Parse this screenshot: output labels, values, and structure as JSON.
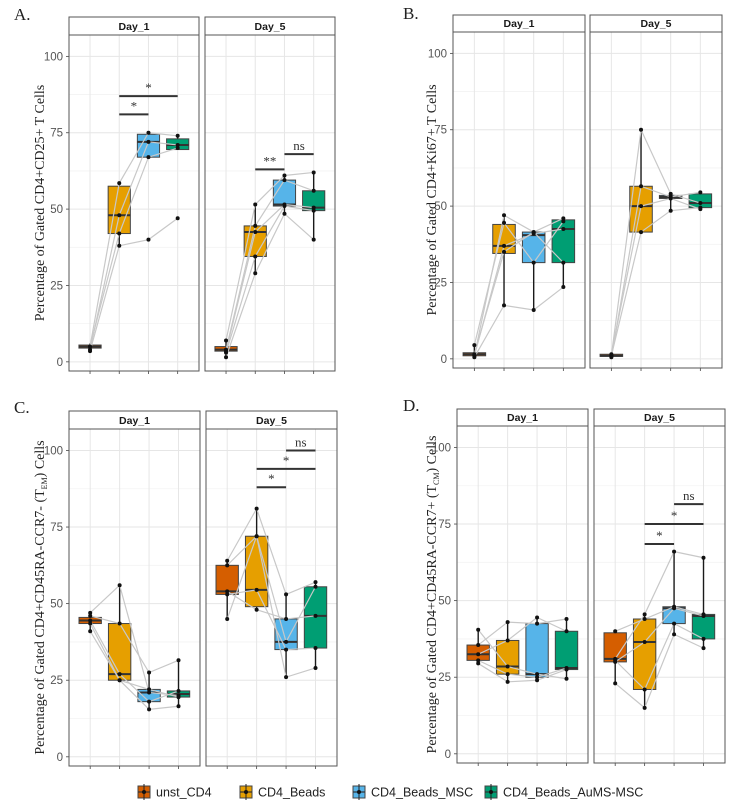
{
  "colors": {
    "unst_CD4": "#D55E00",
    "CD4_Beads": "#E69F00",
    "CD4_Beads_MSC": "#56B4E9",
    "CD4_Beads_AuMS-MSC": "#009E73"
  },
  "legend": {
    "items": [
      {
        "label": "unst_CD4",
        "key": "unst_CD4"
      },
      {
        "label": "CD4_Beads",
        "key": "CD4_Beads"
      },
      {
        "label": "CD4_Beads_MSC",
        "key": "CD4_Beads_MSC"
      },
      {
        "label": "CD4_Beads_AuMS-MSC",
        "key": "CD4_Beads_AuMS-MSC"
      }
    ]
  },
  "chart_data": [
    {
      "type": "box",
      "panel_label": "A.",
      "ylabel": "Percentage of Gated CD4+CD25+ T Cells",
      "ylabel_sub": "",
      "ylim": [
        -3,
        107
      ],
      "yticks": [
        0,
        25,
        50,
        75,
        100
      ],
      "groups": [
        "unst_CD4",
        "CD4_Beads",
        "CD4_Beads_MSC",
        "CD4_Beads_AuMS-MSC"
      ],
      "facets": [
        {
          "title": "Day_1",
          "boxes": [
            {
              "group": "unst_CD4",
              "min": 3.5,
              "q1": 4.5,
              "median": 5,
              "q3": 5.5,
              "max": 6
            },
            {
              "group": "CD4_Beads",
              "min": 38,
              "q1": 42,
              "median": 48,
              "q3": 57.5,
              "max": 58.5
            },
            {
              "group": "CD4_Beads_MSC",
              "min": 67,
              "q1": 67,
              "median": 72,
              "q3": 74.5,
              "max": 75
            },
            {
              "group": "CD4_Beads_AuMS-MSC",
              "min": 69.5,
              "q1": 69.5,
              "median": 71,
              "q3": 73,
              "max": 74
            }
          ],
          "paired_lines": [
            [
              5,
              58.5,
              75,
              74
            ],
            [
              4,
              48,
              72,
              71
            ],
            [
              5,
              42,
              67,
              70
            ],
            [
              3.5,
              38,
              40,
              47
            ]
          ],
          "comparisons": [
            {
              "from": 1,
              "to": 2,
              "y": 81,
              "label": "*"
            },
            {
              "from": 1,
              "to": 3,
              "y": 87,
              "label": "*"
            }
          ]
        },
        {
          "title": "Day_5",
          "boxes": [
            {
              "group": "unst_CD4",
              "min": 1.5,
              "q1": 3.5,
              "median": 4,
              "q3": 5,
              "max": 7
            },
            {
              "group": "CD4_Beads",
              "min": 29,
              "q1": 34.5,
              "median": 42.5,
              "q3": 44.5,
              "max": 51.5
            },
            {
              "group": "CD4_Beads_MSC",
              "min": 48.5,
              "q1": 51,
              "median": 51.5,
              "q3": 59.5,
              "max": 61
            },
            {
              "group": "CD4_Beads_AuMS-MSC",
              "min": 40,
              "q1": 49.5,
              "median": 50.5,
              "q3": 56,
              "max": 62
            }
          ],
          "paired_lines": [
            [
              7,
              51.5,
              61,
              62
            ],
            [
              4,
              44.5,
              59.5,
              56
            ],
            [
              3.5,
              42.5,
              51.5,
              50.5
            ],
            [
              3,
              34.5,
              51,
              49.5
            ],
            [
              1.5,
              29,
              48.5,
              40
            ]
          ],
          "comparisons": [
            {
              "from": 1,
              "to": 2,
              "y": 63,
              "label": "**"
            },
            {
              "from": 2,
              "to": 3,
              "y": 68,
              "label": "ns"
            }
          ]
        }
      ]
    },
    {
      "type": "box",
      "panel_label": "B.",
      "ylabel": "Percentage of Gated CD4+Ki67+ T Cells",
      "ylabel_sub": "",
      "ylim": [
        -3,
        107
      ],
      "yticks": [
        0,
        25,
        50,
        75,
        100
      ],
      "groups": [
        "unst_CD4",
        "CD4_Beads",
        "CD4_Beads_MSC",
        "CD4_Beads_AuMS-MSC"
      ],
      "facets": [
        {
          "title": "Day_1",
          "boxes": [
            {
              "group": "unst_CD4",
              "min": 0.5,
              "q1": 1,
              "median": 1.5,
              "q3": 2,
              "max": 4.5
            },
            {
              "group": "CD4_Beads",
              "min": 17.5,
              "q1": 34.5,
              "median": 37,
              "q3": 44,
              "max": 47
            },
            {
              "group": "CD4_Beads_MSC",
              "min": 16,
              "q1": 31.5,
              "median": 40.5,
              "q3": 41.5,
              "max": 42
            },
            {
              "group": "CD4_Beads_AuMS-MSC",
              "min": 23.5,
              "q1": 31.5,
              "median": 42.5,
              "q3": 45.5,
              "max": 46
            }
          ],
          "paired_lines": [
            [
              1,
              47,
              41.5,
              46
            ],
            [
              4.5,
              44.5,
              31.5,
              45
            ],
            [
              1,
              37,
              41,
              42.5
            ],
            [
              1.5,
              35,
              41.5,
              31.5
            ],
            [
              0.5,
              17.5,
              16,
              23.5
            ]
          ],
          "comparisons": []
        },
        {
          "title": "Day_5",
          "boxes": [
            {
              "group": "unst_CD4",
              "min": 0.5,
              "q1": 0.8,
              "median": 1,
              "q3": 1.5,
              "max": 2
            },
            {
              "group": "CD4_Beads",
              "min": 41.5,
              "q1": 41.5,
              "median": 50,
              "q3": 56.5,
              "max": 75
            },
            {
              "group": "CD4_Beads_MSC",
              "min": 48.5,
              "q1": 52.5,
              "median": 53,
              "q3": 53.5,
              "max": 54
            },
            {
              "group": "CD4_Beads_AuMS-MSC",
              "min": 49,
              "q1": 49.5,
              "median": 51,
              "q3": 54,
              "max": 54.5
            }
          ],
          "paired_lines": [
            [
              1,
              75,
              54,
              51
            ],
            [
              0.5,
              56.5,
              53,
              54.5
            ],
            [
              1.5,
              50,
              52.5,
              49
            ],
            [
              1,
              41.5,
              48.5,
              49.5
            ]
          ],
          "comparisons": []
        }
      ]
    },
    {
      "type": "box",
      "panel_label": "C.",
      "ylabel": "Percentage of Gated CD4+CD45RA-CCR7- (T",
      "ylabel_sub": "EM",
      "ylabel_end": ") Cells",
      "ylim": [
        -3,
        107
      ],
      "yticks": [
        0,
        25,
        50,
        75,
        100
      ],
      "groups": [
        "unst_CD4",
        "CD4_Beads",
        "CD4_Beads_MSC",
        "CD4_Beads_AuMS-MSC"
      ],
      "facets": [
        {
          "title": "Day_1",
          "boxes": [
            {
              "group": "unst_CD4",
              "min": 41,
              "q1": 43.5,
              "median": 44.5,
              "q3": 45.5,
              "max": 47
            },
            {
              "group": "CD4_Beads",
              "min": 25,
              "q1": 25,
              "median": 27,
              "q3": 43.5,
              "max": 56
            },
            {
              "group": "CD4_Beads_MSC",
              "min": 15.5,
              "q1": 18,
              "median": 21,
              "q3": 22,
              "max": 27.5
            },
            {
              "group": "CD4_Beads_AuMS-MSC",
              "min": 16.5,
              "q1": 19.5,
              "median": 20.5,
              "q3": 21.5,
              "max": 31.5
            }
          ],
          "paired_lines": [
            [
              47,
              56,
              21,
              20
            ],
            [
              46,
              43.5,
              27.5,
              31.5
            ],
            [
              44.5,
              27,
              18,
              21.5
            ],
            [
              43.5,
              25,
              22,
              19.5
            ],
            [
              41,
              25,
              15.5,
              16.5
            ]
          ],
          "comparisons": []
        },
        {
          "title": "Day_5",
          "boxes": [
            {
              "group": "unst_CD4",
              "min": 45,
              "q1": 53,
              "median": 54,
              "q3": 62.5,
              "max": 64
            },
            {
              "group": "CD4_Beads",
              "min": 47.5,
              "q1": 49,
              "median": 54.5,
              "q3": 72,
              "max": 81
            },
            {
              "group": "CD4_Beads_MSC",
              "min": 26,
              "q1": 35,
              "median": 37.5,
              "q3": 45,
              "max": 53
            },
            {
              "group": "CD4_Beads_AuMS-MSC",
              "min": 29,
              "q1": 35.5,
              "median": 46,
              "q3": 55.5,
              "max": 57
            }
          ],
          "paired_lines": [
            [
              64,
              81,
              53,
              57
            ],
            [
              62.5,
              72,
              37.5,
              55.5
            ],
            [
              54,
              48,
              45,
              46
            ],
            [
              53,
              54.5,
              35,
              35.5
            ],
            [
              45,
              72,
              26,
              29
            ]
          ],
          "comparisons": [
            {
              "from": 1,
              "to": 2,
              "y": 88,
              "label": "*"
            },
            {
              "from": 1,
              "to": 3,
              "y": 94,
              "label": "*"
            },
            {
              "from": 2,
              "to": 3,
              "y": 100,
              "label": "ns"
            }
          ]
        }
      ]
    },
    {
      "type": "box",
      "panel_label": "D.",
      "ylabel": "Percentage of Gated CD4+CD45RA-CCR7+ (T",
      "ylabel_sub": "CM",
      "ylabel_end": ") Cells",
      "ylim": [
        -3,
        107
      ],
      "yticks": [
        0,
        25,
        50,
        75,
        100
      ],
      "groups": [
        "unst_CD4",
        "CD4_Beads",
        "CD4_Beads_MSC",
        "CD4_Beads_AuMS-MSC"
      ],
      "facets": [
        {
          "title": "Day_1",
          "boxes": [
            {
              "group": "unst_CD4",
              "min": 29.5,
              "q1": 30.5,
              "median": 32.5,
              "q3": 35.5,
              "max": 40.5
            },
            {
              "group": "CD4_Beads",
              "min": 23.5,
              "q1": 26,
              "median": 28.5,
              "q3": 37,
              "max": 43
            },
            {
              "group": "CD4_Beads_MSC",
              "min": 24,
              "q1": 25,
              "median": 26,
              "q3": 42.5,
              "max": 44.5
            },
            {
              "group": "CD4_Beads_AuMS-MSC",
              "min": 24.5,
              "q1": 27.5,
              "median": 28,
              "q3": 40,
              "max": 44
            }
          ],
          "paired_lines": [
            [
              40.5,
              28.5,
              26,
              24.5
            ],
            [
              35.5,
              43,
              42.5,
              44
            ],
            [
              32.5,
              37,
              44.5,
              40
            ],
            [
              30.5,
              26,
              25,
              28
            ],
            [
              29.5,
              23.5,
              24,
              27.5
            ]
          ],
          "comparisons": []
        },
        {
          "title": "Day_5",
          "boxes": [
            {
              "group": "unst_CD4",
              "min": 23,
              "q1": 30,
              "median": 31,
              "q3": 39.5,
              "max": 40
            },
            {
              "group": "CD4_Beads",
              "min": 15,
              "q1": 21,
              "median": 36.5,
              "q3": 44,
              "max": 45.5
            },
            {
              "group": "CD4_Beads_MSC",
              "min": 39,
              "q1": 42.5,
              "median": 47.5,
              "q3": 48,
              "max": 66
            },
            {
              "group": "CD4_Beads_AuMS-MSC",
              "min": 34.5,
              "q1": 37.5,
              "median": 45,
              "q3": 45.5,
              "max": 64
            }
          ],
          "paired_lines": [
            [
              40,
              44,
              48,
              45.5
            ],
            [
              31,
              45.5,
              66,
              64
            ],
            [
              30.5,
              21,
              42.5,
              37.5
            ],
            [
              30,
              36.5,
              47.5,
              45
            ],
            [
              23,
              15,
              39,
              34.5
            ]
          ],
          "comparisons": [
            {
              "from": 1,
              "to": 2,
              "y": 68.5,
              "label": "*"
            },
            {
              "from": 1,
              "to": 3,
              "y": 75,
              "label": "*"
            },
            {
              "from": 2,
              "to": 3,
              "y": 81.5,
              "label": "ns"
            }
          ]
        }
      ]
    }
  ]
}
